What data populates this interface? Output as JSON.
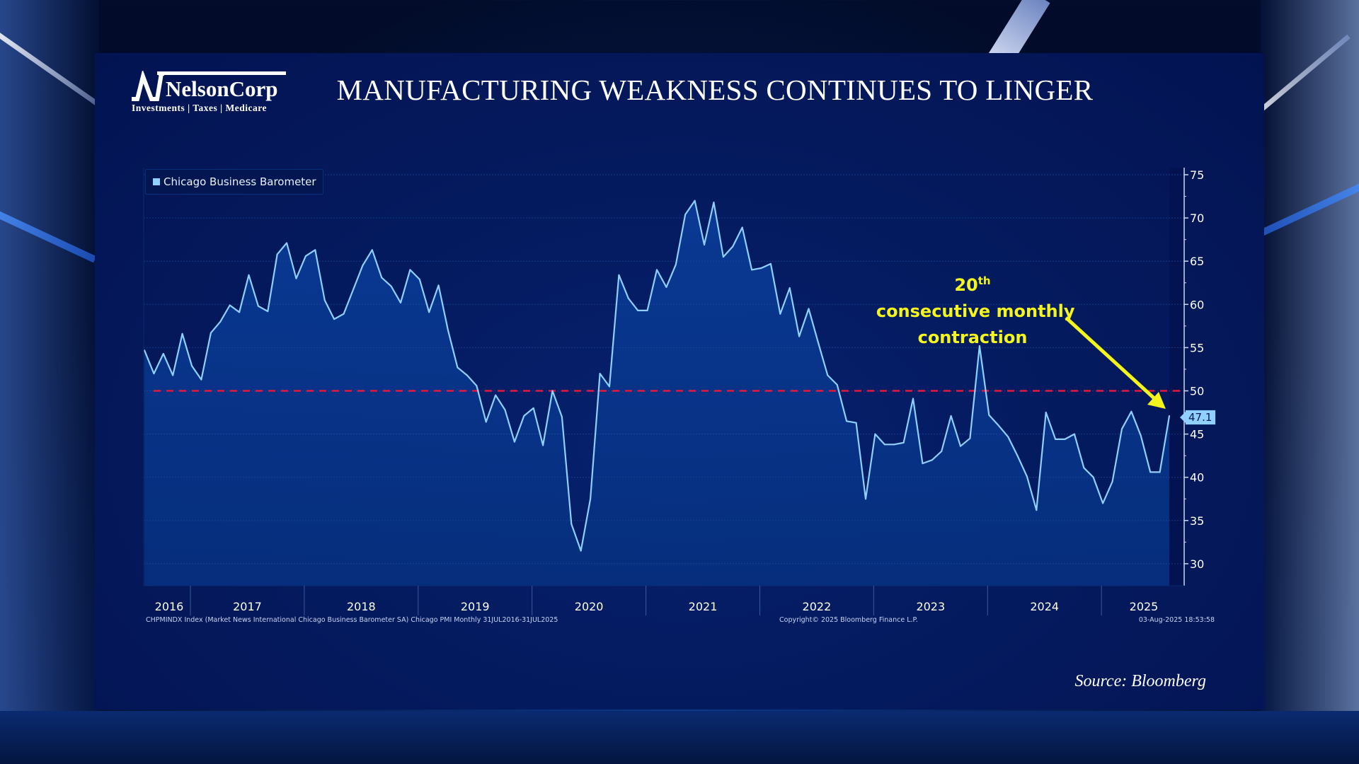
{
  "logo": {
    "name": "NelsonCorp",
    "tagline": "Investments | Taxes | Medicare"
  },
  "title": "MANUFACTURING WEAKNESS CONTINUES TO LINGER",
  "annotation": {
    "ordinal": "20",
    "suffix": "th",
    "line1_rest": " consecutive monthly",
    "line2": "contraction",
    "color": "#f3f51c"
  },
  "footer": {
    "left": "CHPMINDX Index (Market News International Chicago Business Barometer SA) Chicago PMI  Monthly 31JUL2016-31JUL2025",
    "middle": "Copyright© 2025 Bloomberg Finance L.P.",
    "right": "03-Aug-2025 18:53:58"
  },
  "source": "Source: Bloomberg",
  "colors": {
    "line": "#8fd0ff",
    "fill": "#0a3a96",
    "reference_line": "#e8173c",
    "panel": "#041a5e"
  },
  "chart_data": {
    "type": "area",
    "frequency": "monthly",
    "x_range": [
      "2016-07",
      "2025-07"
    ],
    "ylim": [
      27.5,
      75.8
    ],
    "y_ticks": [
      "30",
      "35",
      "40",
      "45",
      "50",
      "55",
      "60",
      "65",
      "70",
      "75"
    ],
    "x_tick_labels": [
      "2016",
      "2017",
      "2018",
      "2019",
      "2020",
      "2021",
      "2022",
      "2023",
      "2024",
      "2025"
    ],
    "grid": true,
    "y_axis_side": "right",
    "legend_position": "top-left",
    "reference_line": 50,
    "last_value_label": "47.1",
    "series": [
      {
        "name": "Chicago Business Barometer",
        "values": [
          54.7,
          52.0,
          54.3,
          51.8,
          56.6,
          52.9,
          51.3,
          56.7,
          58.0,
          59.9,
          59.1,
          63.4,
          59.8,
          59.2,
          65.8,
          67.1,
          63.0,
          65.6,
          66.3,
          60.5,
          58.3,
          58.9,
          61.7,
          64.5,
          66.3,
          63.1,
          62.1,
          60.2,
          64.0,
          62.9,
          59.1,
          62.2,
          57.0,
          52.7,
          51.8,
          50.6,
          46.4,
          49.5,
          47.8,
          44.1,
          47.1,
          48.0,
          43.7,
          50.0,
          47.0,
          34.6,
          31.5,
          37.5,
          52.0,
          50.5,
          63.4,
          60.7,
          59.3,
          59.3,
          64.0,
          62.0,
          64.6,
          70.4,
          72.0,
          66.9,
          71.8,
          65.5,
          66.7,
          68.9,
          64.0,
          64.2,
          64.7,
          58.9,
          61.9,
          56.3,
          59.5,
          55.6,
          51.8,
          50.7,
          46.5,
          46.3,
          37.5,
          45.0,
          43.8,
          43.8,
          44.0,
          49.1,
          41.6,
          42.0,
          43.0,
          47.1,
          43.6,
          44.5,
          55.2,
          47.2,
          46.0,
          44.7,
          42.5,
          40.1,
          36.2,
          47.5,
          44.4,
          44.4,
          45.0,
          41.1,
          40.0,
          37.0,
          39.5,
          45.6,
          47.6,
          44.8,
          40.6,
          40.6,
          47.1
        ]
      }
    ]
  }
}
